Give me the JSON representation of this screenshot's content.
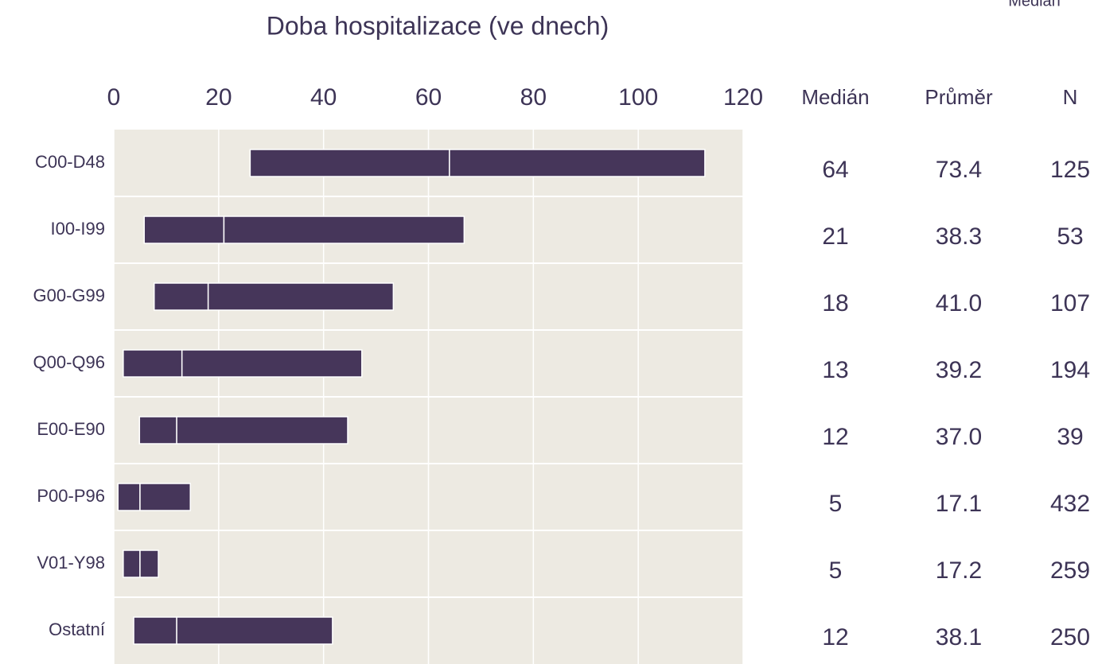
{
  "chart_data": {
    "type": "range",
    "title": "Doba hospitalizace (ve dnech)",
    "legend": "Medián",
    "categories": [
      "C00-D48",
      "I00-I99",
      "G00-G99",
      "Q00-Q96",
      "E00-E90",
      "P00-P96",
      "V01-Y98",
      "Ostatní"
    ],
    "q1": [
      26,
      5.8,
      7.7,
      1.8,
      4.9,
      0.8,
      1.8,
      3.8
    ],
    "median": [
      64,
      21,
      18,
      13,
      12,
      5,
      5,
      12
    ],
    "q3": [
      112.7,
      66.8,
      53.3,
      47.3,
      44.6,
      14.6,
      8.5,
      41.7
    ],
    "mean": [
      73.4,
      38.3,
      41.0,
      39.2,
      37.0,
      17.1,
      17.2,
      38.1
    ],
    "mean_labels": [
      "73.4",
      "38.3",
      "41.0",
      "39.2",
      "37.0",
      "17.1",
      "17.2",
      "38.1"
    ],
    "n": [
      125,
      53,
      107,
      194,
      39,
      432,
      259,
      250
    ],
    "table_headers": [
      "Medián",
      "Průměr",
      "N"
    ],
    "color": "#46365a",
    "xlim": [
      0,
      120
    ],
    "xticks": [
      0,
      20,
      40,
      60,
      80,
      100,
      120
    ],
    "grid": true
  }
}
